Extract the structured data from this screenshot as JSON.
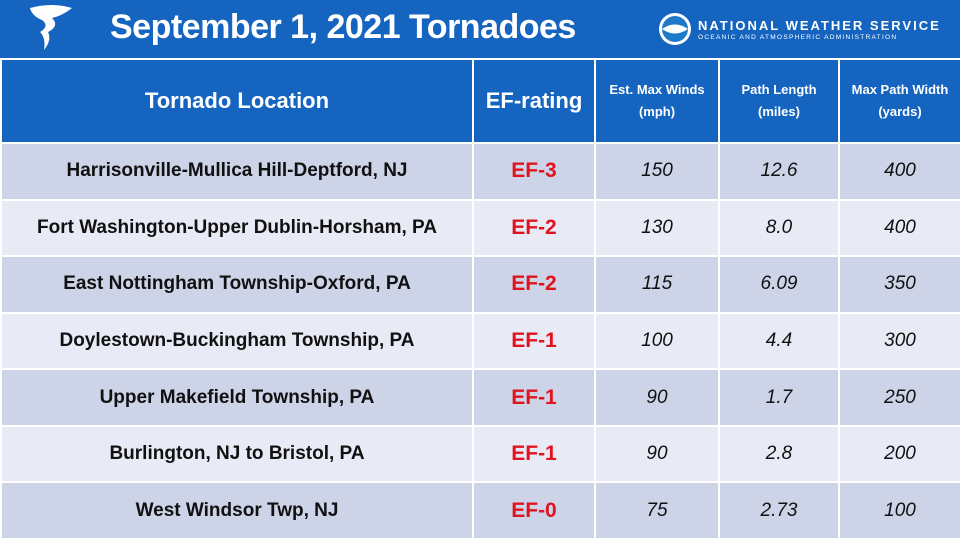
{
  "header": {
    "title": "September 1, 2021 Tornadoes",
    "agency": "NATIONAL WEATHER SERVICE",
    "subagency": "OCEANIC AND ATMOSPHERIC ADMINISTRATION"
  },
  "table": {
    "columns": [
      "Tornado Location",
      "EF-rating",
      "Est. Max Winds (mph)",
      "Path Length (miles)",
      "Max Path Width (yards)"
    ],
    "rows": [
      [
        "Harrisonville-Mullica Hill-Deptford, NJ",
        "EF-3",
        "150",
        "12.6",
        "400"
      ],
      [
        "Fort Washington-Upper Dublin-Horsham, PA",
        "EF-2",
        "130",
        "8.0",
        "400"
      ],
      [
        "East Nottingham Township-Oxford, PA",
        "EF-2",
        "115",
        "6.09",
        "350"
      ],
      [
        "Doylestown-Buckingham Township, PA",
        "EF-1",
        "100",
        "4.4",
        "300"
      ],
      [
        "Upper Makefield Township, PA",
        "EF-1",
        "90",
        "1.7",
        "250"
      ],
      [
        "Burlington, NJ to Bristol, PA",
        "EF-1",
        "90",
        "2.8",
        "200"
      ],
      [
        "West Windsor Twp, NJ",
        "EF-0",
        "75",
        "2.73",
        "100"
      ]
    ]
  }
}
